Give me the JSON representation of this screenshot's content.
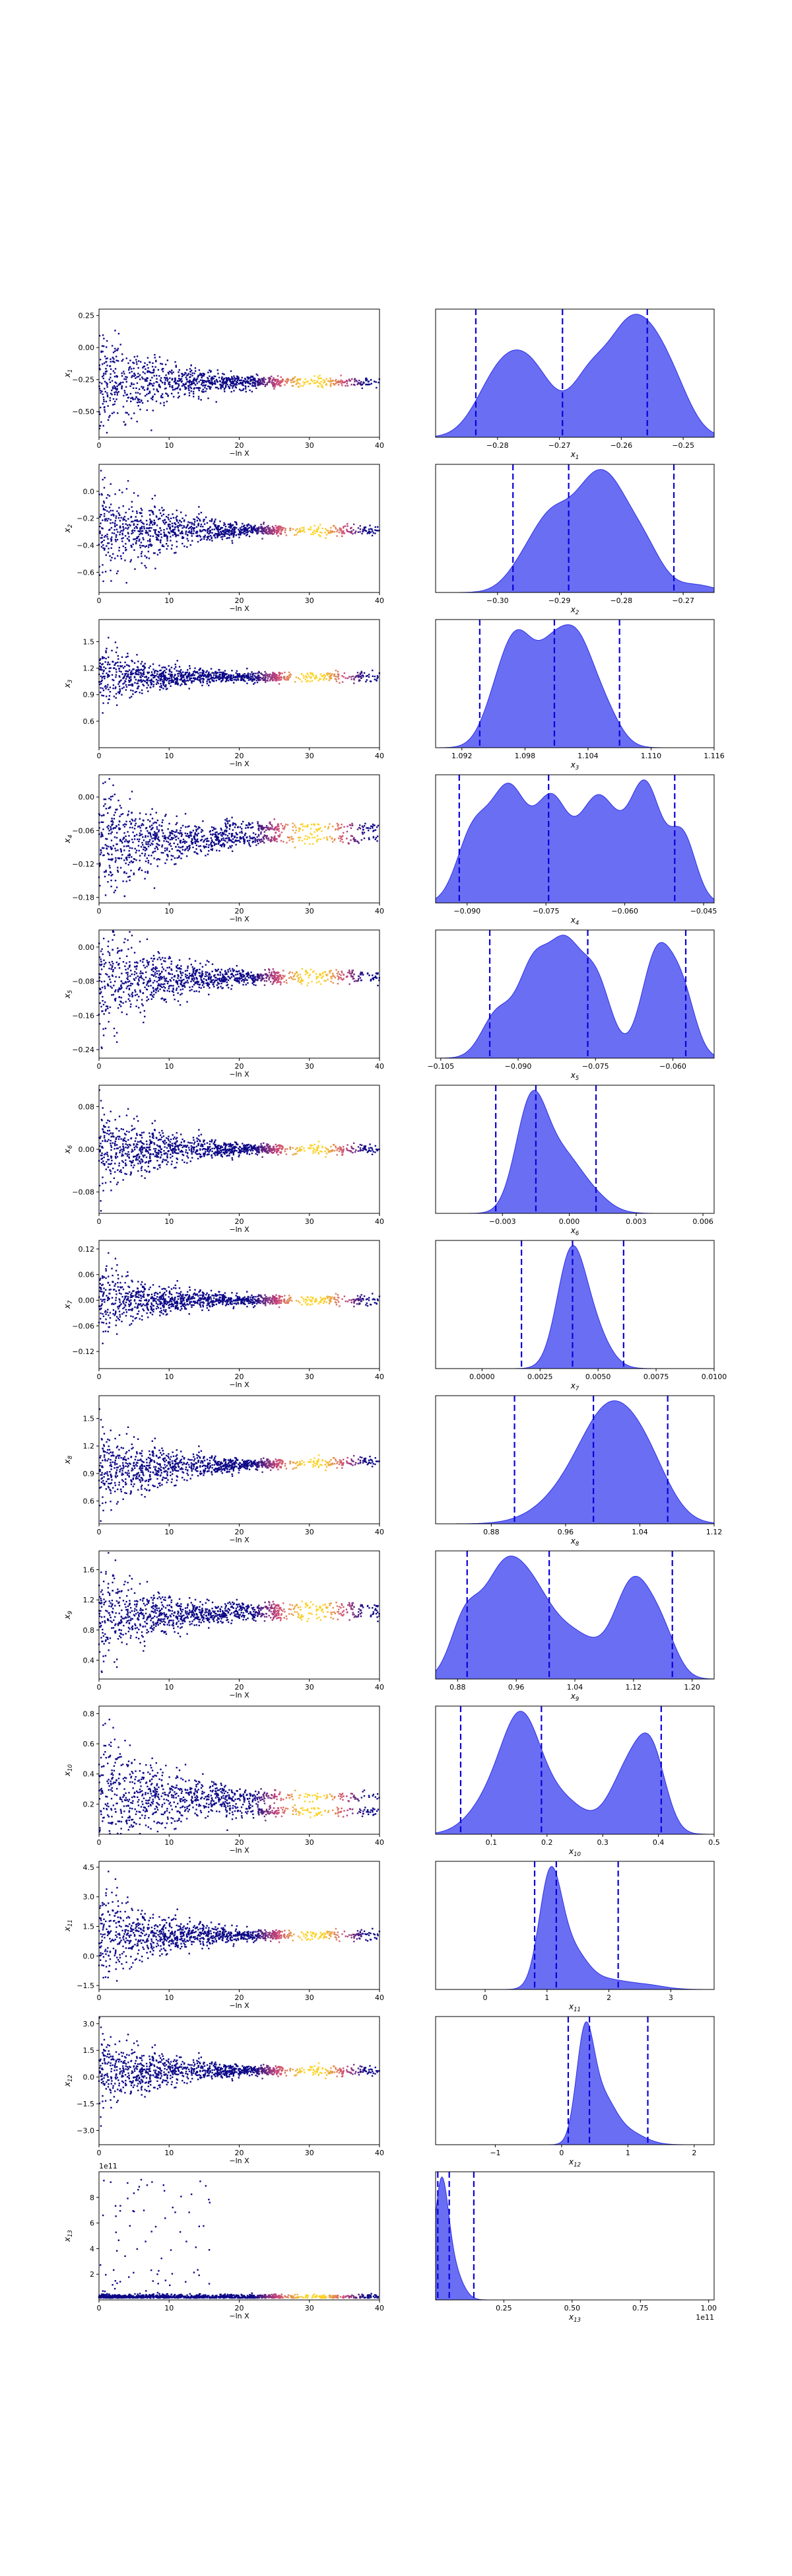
{
  "figure": {
    "colors": {
      "kde_fill": "#5a5ef2",
      "kde_edge": "#2c30e6",
      "quantile_line": "#0a00d8",
      "scatter_low": "#0d0887",
      "scatter_mid": "#cc4778",
      "scatter_high": "#fcd225"
    }
  },
  "chart_data": [
    {
      "type": "scatter",
      "panel": "trace",
      "ylabel": "x1",
      "xlabel": "−ln X",
      "xlim": [
        0,
        40
      ],
      "xticks": [
        "0",
        "10",
        "20",
        "30",
        "40"
      ],
      "yticks": [
        0.25,
        0.0,
        -0.25,
        -0.5
      ],
      "ylim": [
        -0.7,
        0.3
      ],
      "yformat": "2f",
      "converge": -0.27,
      "spread0": 0.22,
      "band": 1.0,
      "mode": "funnel"
    },
    {
      "type": "area",
      "panel": "posterior",
      "xlabel": "x1",
      "xlim": [
        -0.29,
        -0.245
      ],
      "xticks": [
        -0.28,
        -0.27,
        -0.26,
        -0.25
      ],
      "xformat": "2f",
      "peaks": [
        [
          -0.2805,
          0.55,
          0.0035
        ],
        [
          -0.275,
          0.9,
          0.004
        ],
        [
          -0.265,
          0.75,
          0.003
        ],
        [
          -0.2595,
          1.0,
          0.003
        ],
        [
          -0.2555,
          0.85,
          0.003
        ],
        [
          -0.2515,
          0.55,
          0.003
        ]
      ],
      "quantiles": [
        -0.2835,
        -0.2695,
        -0.2558
      ]
    },
    {
      "type": "scatter",
      "panel": "trace",
      "ylabel": "x2",
      "xlabel": "−ln X",
      "xlim": [
        0,
        40
      ],
      "xticks": [
        "0",
        "10",
        "20",
        "30",
        "40"
      ],
      "yticks": [
        0.0,
        -0.2,
        -0.4,
        -0.6
      ],
      "ylim": [
        -0.75,
        0.2
      ],
      "yformat": "1f",
      "converge": -0.29,
      "spread0": 0.22,
      "band": 1.0,
      "mode": "funnel"
    },
    {
      "type": "area",
      "panel": "posterior",
      "xlabel": "x2",
      "xlim": [
        -0.31,
        -0.265
      ],
      "xticks": [
        -0.3,
        -0.29,
        -0.28,
        -0.27
      ],
      "xformat": "2f",
      "peaks": [
        [
          -0.2955,
          0.35,
          0.003
        ],
        [
          -0.291,
          0.85,
          0.003
        ],
        [
          -0.2855,
          0.95,
          0.003
        ],
        [
          -0.2815,
          1.0,
          0.003
        ],
        [
          -0.2765,
          0.6,
          0.003
        ],
        [
          -0.268,
          0.1,
          0.003
        ]
      ],
      "quantiles": [
        -0.2975,
        -0.2885,
        -0.2715
      ]
    },
    {
      "type": "scatter",
      "panel": "trace",
      "ylabel": "x3",
      "xlabel": "−ln X",
      "xlim": [
        0,
        40
      ],
      "xticks": [
        "0",
        "10",
        "20",
        "30",
        "40"
      ],
      "yticks": [
        1.5,
        1.2,
        0.9,
        0.6
      ],
      "ylim": [
        0.3,
        1.75
      ],
      "yformat": "1f",
      "converge": 1.1,
      "spread0": 0.18,
      "band": 1.0,
      "mode": "funnel"
    },
    {
      "type": "area",
      "panel": "posterior",
      "xlabel": "x3",
      "xlim": [
        1.0895,
        1.116
      ],
      "xticks": [
        1.092,
        1.098,
        1.104,
        1.11,
        1.116
      ],
      "xformat": "3f",
      "peaks": [
        [
          1.0955,
          0.5,
          0.0015
        ],
        [
          1.0975,
          1.0,
          0.0015
        ],
        [
          1.1005,
          0.9,
          0.0015
        ],
        [
          1.103,
          1.0,
          0.0015
        ],
        [
          1.1055,
          0.4,
          0.0015
        ]
      ],
      "quantiles": [
        1.0937,
        1.1008,
        1.107
      ]
    },
    {
      "type": "scatter",
      "panel": "trace",
      "ylabel": "x4",
      "xlabel": "−ln X",
      "xlim": [
        0,
        40
      ],
      "xticks": [
        "0",
        "10",
        "20",
        "30",
        "40"
      ],
      "yticks": [
        0.0,
        -0.06,
        -0.12,
        -0.18
      ],
      "ylim": [
        -0.19,
        0.04
      ],
      "yformat": "2f",
      "converge": -0.075,
      "spread0": 0.05,
      "band": 1.2,
      "mode": "bimodal",
      "m2": -0.055
    },
    {
      "type": "area",
      "panel": "posterior",
      "xlabel": "x4",
      "xlim": [
        -0.096,
        -0.043
      ],
      "xticks": [
        -0.09,
        -0.075,
        -0.06,
        -0.045
      ],
      "xformat": "3f",
      "peaks": [
        [
          -0.089,
          0.5,
          0.003
        ],
        [
          -0.082,
          0.85,
          0.0035
        ],
        [
          -0.074,
          0.7,
          0.003
        ],
        [
          -0.065,
          0.8,
          0.004
        ],
        [
          -0.056,
          0.85,
          0.003
        ],
        [
          -0.049,
          0.5,
          0.0025
        ]
      ],
      "quantiles": [
        -0.0915,
        -0.0745,
        -0.0505
      ]
    },
    {
      "type": "scatter",
      "panel": "trace",
      "ylabel": "x5",
      "xlabel": "−ln X",
      "xlim": [
        0,
        40
      ],
      "xticks": [
        "0",
        "10",
        "20",
        "30",
        "40"
      ],
      "yticks": [
        0.0,
        -0.08,
        -0.16,
        -0.24
      ],
      "ylim": [
        -0.26,
        0.04
      ],
      "yformat": "2f",
      "converge": -0.075,
      "spread0": 0.06,
      "band": 1.2,
      "mode": "bimodal",
      "m2": -0.065
    },
    {
      "type": "area",
      "panel": "posterior",
      "xlabel": "x5",
      "xlim": [
        -0.106,
        -0.052
      ],
      "xticks": [
        -0.105,
        -0.09,
        -0.075,
        -0.06
      ],
      "xformat": "3f",
      "peaks": [
        [
          -0.094,
          0.4,
          0.003
        ],
        [
          -0.087,
          0.8,
          0.003
        ],
        [
          -0.081,
          0.9,
          0.003
        ],
        [
          -0.075,
          0.7,
          0.003
        ],
        [
          -0.063,
          0.95,
          0.003
        ],
        [
          -0.058,
          0.5,
          0.0025
        ]
      ],
      "quantiles": [
        -0.0955,
        -0.0765,
        -0.0575
      ]
    },
    {
      "type": "scatter",
      "panel": "trace",
      "ylabel": "x6",
      "xlabel": "−ln X",
      "xlim": [
        0,
        40
      ],
      "xticks": [
        "0",
        "10",
        "20",
        "30",
        "40"
      ],
      "yticks": [
        0.08,
        0.0,
        -0.08
      ],
      "ylim": [
        -0.12,
        0.12
      ],
      "yformat": "2f",
      "converge": 0.0,
      "spread0": 0.045,
      "band": 1.0,
      "mode": "funnel"
    },
    {
      "type": "area",
      "panel": "posterior",
      "xlabel": "x6",
      "xlim": [
        -0.006,
        0.0065
      ],
      "xticks": [
        -0.003,
        0.0,
        0.003,
        0.006
      ],
      "xformat": "3f",
      "peaks": [
        [
          -0.0017,
          1.0,
          0.0007
        ],
        [
          -0.0003,
          0.45,
          0.0008
        ],
        [
          0.001,
          0.15,
          0.0008
        ]
      ],
      "quantiles": [
        -0.0033,
        -0.0015,
        0.0012
      ]
    },
    {
      "type": "scatter",
      "panel": "trace",
      "ylabel": "x7",
      "xlabel": "−ln X",
      "xlim": [
        0,
        40
      ],
      "xticks": [
        "0",
        "10",
        "20",
        "30",
        "40"
      ],
      "yticks": [
        0.12,
        0.06,
        0.0,
        -0.06,
        -0.12
      ],
      "ylim": [
        -0.16,
        0.14
      ],
      "yformat": "2f",
      "converge": 0.0,
      "spread0": 0.045,
      "band": 1.0,
      "mode": "funnel"
    },
    {
      "type": "area",
      "panel": "posterior",
      "xlabel": "x7",
      "xlim": [
        -0.002,
        0.01
      ],
      "xticks": [
        0.0,
        0.0025,
        0.005,
        0.0075,
        0.01
      ],
      "xformat": "4f",
      "peaks": [
        [
          0.0038,
          1.0,
          0.0006
        ],
        [
          0.0047,
          0.4,
          0.0007
        ]
      ],
      "quantiles": [
        0.0017,
        0.0039,
        0.0061
      ]
    },
    {
      "type": "scatter",
      "panel": "trace",
      "ylabel": "x8",
      "xlabel": "−ln X",
      "xlim": [
        0,
        40
      ],
      "xticks": [
        "0",
        "10",
        "20",
        "30",
        "40"
      ],
      "yticks": [
        1.5,
        1.2,
        0.9,
        0.6
      ],
      "ylim": [
        0.35,
        1.75
      ],
      "yformat": "1f",
      "converge": 0.95,
      "spread0": 0.22,
      "band": 1.2,
      "mode": "rising"
    },
    {
      "type": "area",
      "panel": "posterior",
      "xlabel": "x8",
      "xlim": [
        0.82,
        1.12
      ],
      "xticks": [
        0.88,
        0.96,
        1.04,
        1.12
      ],
      "xformat": "2f",
      "peaks": [
        [
          0.97,
          0.35,
          0.035
        ],
        [
          1.01,
          1.0,
          0.03
        ],
        [
          1.05,
          0.45,
          0.025
        ]
      ],
      "quantiles": [
        0.905,
        0.99,
        1.07
      ]
    },
    {
      "type": "scatter",
      "panel": "trace",
      "ylabel": "x9",
      "xlabel": "−ln X",
      "xlim": [
        0,
        40
      ],
      "xticks": [
        "0",
        "10",
        "20",
        "30",
        "40"
      ],
      "yticks": [
        1.6,
        1.2,
        0.8,
        0.4
      ],
      "ylim": [
        0.15,
        1.85
      ],
      "yformat": "1f",
      "converge": 1.0,
      "spread0": 0.28,
      "band": 1.2,
      "mode": "bimodal",
      "m2": 1.1
    },
    {
      "type": "area",
      "panel": "posterior",
      "xlabel": "x9",
      "xlim": [
        0.85,
        1.23
      ],
      "xticks": [
        0.88,
        0.96,
        1.04,
        1.12,
        1.2
      ],
      "xformat": "2f",
      "peaks": [
        [
          0.89,
          0.55,
          0.02
        ],
        [
          0.935,
          0.7,
          0.025
        ],
        [
          0.975,
          0.8,
          0.03
        ],
        [
          1.04,
          0.4,
          0.035
        ],
        [
          1.12,
          0.9,
          0.025
        ],
        [
          1.16,
          0.35,
          0.02
        ]
      ],
      "quantiles": [
        0.893,
        1.005,
        1.173
      ]
    },
    {
      "type": "scatter",
      "panel": "trace",
      "ylabel": "x10",
      "xlabel": "−ln X",
      "xlim": [
        0,
        40
      ],
      "xticks": [
        "0",
        "10",
        "20",
        "30",
        "40"
      ],
      "yticks": [
        0.8,
        0.6,
        0.4,
        0.2
      ],
      "ylim": [
        0.0,
        0.85
      ],
      "yformat": "1f",
      "converge": 0.25,
      "spread0": 0.22,
      "band": 1.3,
      "mode": "bimodal",
      "m2": 0.15
    },
    {
      "type": "area",
      "panel": "posterior",
      "xlabel": "x10",
      "xlim": [
        0.0,
        0.5
      ],
      "xticks": [
        0.1,
        0.2,
        0.3,
        0.4,
        0.5
      ],
      "xformat": "1f",
      "peaks": [
        [
          0.1,
          0.3,
          0.04
        ],
        [
          0.155,
          1.0,
          0.035
        ],
        [
          0.23,
          0.3,
          0.04
        ],
        [
          0.35,
          0.65,
          0.035
        ],
        [
          0.39,
          0.55,
          0.025
        ]
      ],
      "quantiles": [
        0.045,
        0.19,
        0.405
      ]
    },
    {
      "type": "scatter",
      "panel": "trace",
      "ylabel": "x11",
      "xlabel": "−ln X",
      "xlim": [
        0,
        40
      ],
      "xticks": [
        "0",
        "10",
        "20",
        "30",
        "40"
      ],
      "yticks": [
        4.5,
        3.0,
        1.5,
        0.0,
        -1.5
      ],
      "ylim": [
        -1.7,
        4.8
      ],
      "yformat": "1f",
      "converge": 1.05,
      "spread0": 1.1,
      "band": 1.2,
      "mode": "funnel"
    },
    {
      "type": "area",
      "panel": "posterior",
      "xlabel": "x11",
      "xlim": [
        -0.8,
        3.7
      ],
      "xticks": [
        0,
        1,
        2,
        3
      ],
      "xformat": "0f",
      "peaks": [
        [
          1.05,
          1.0,
          0.18
        ],
        [
          1.4,
          0.35,
          0.25
        ],
        [
          2.0,
          0.08,
          0.3
        ],
        [
          2.6,
          0.04,
          0.3
        ]
      ],
      "quantiles": [
        0.8,
        1.15,
        2.15
      ]
    },
    {
      "type": "scatter",
      "panel": "trace",
      "ylabel": "x12",
      "xlabel": "−ln X",
      "xlim": [
        0,
        40
      ],
      "xticks": [
        "0",
        "10",
        "20",
        "30",
        "40"
      ],
      "yticks": [
        3.0,
        1.5,
        0.0,
        -1.5,
        -3.0
      ],
      "ylim": [
        -3.8,
        3.4
      ],
      "yformat": "1f",
      "converge": 0.35,
      "spread0": 1.0,
      "band": 1.2,
      "mode": "funnel"
    },
    {
      "type": "area",
      "panel": "posterior",
      "xlabel": "x12",
      "xlim": [
        -1.9,
        2.3
      ],
      "xticks": [
        -1,
        0,
        1,
        2
      ],
      "xformat": "0f",
      "peaks": [
        [
          0.35,
          1.0,
          0.13
        ],
        [
          0.6,
          0.45,
          0.2
        ],
        [
          1.0,
          0.12,
          0.25
        ]
      ],
      "quantiles": [
        0.1,
        0.42,
        1.3
      ]
    },
    {
      "type": "scatter",
      "panel": "trace",
      "ylabel": "x13",
      "xlabel": "−ln X",
      "xlim": [
        0,
        40
      ],
      "xticks": [
        "0",
        "10",
        "20",
        "30",
        "40"
      ],
      "yticks": [
        2,
        4,
        6,
        8
      ],
      "ylim": [
        0,
        10
      ],
      "yformat": "0f",
      "offset_text": "1e11",
      "converge": 0.2,
      "spread0": 0.3,
      "band": 1.0,
      "mode": "heavy"
    },
    {
      "type": "area",
      "panel": "posterior",
      "xlabel": "x13",
      "xlim": [
        0,
        1.02
      ],
      "xticks": [
        0.25,
        0.5,
        0.75,
        1.0
      ],
      "xformat": "2f",
      "offset_text": "1e11",
      "peaks": [
        [
          0.02,
          1.0,
          0.025
        ],
        [
          0.06,
          0.3,
          0.035
        ]
      ],
      "quantiles": [
        0.008,
        0.05,
        0.14
      ]
    }
  ]
}
